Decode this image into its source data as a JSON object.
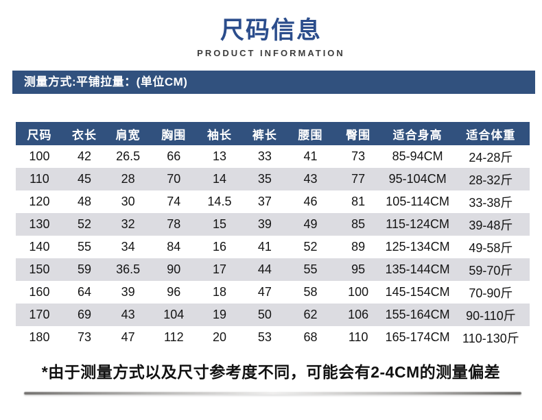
{
  "header": {
    "title": "尺码信息",
    "subtitle": "PRODUCT INFORMATION",
    "measure_note": "测量方式:平铺拉量：(单位CM)"
  },
  "colors": {
    "navy_bar": "#31517e",
    "title_blue": "#2b4d8c",
    "row_alt_gray": "#dcdce1",
    "text_black": "#141414"
  },
  "table": {
    "columns": [
      "尺码",
      "衣长",
      "肩宽",
      "胸围",
      "袖长",
      "裤长",
      "腰围",
      "臀围",
      "适合身高",
      "适合体重"
    ],
    "rows": [
      [
        "100",
        "42",
        "26.5",
        "66",
        "13",
        "33",
        "41",
        "73",
        "85-94CM",
        "24-28斤"
      ],
      [
        "110",
        "45",
        "28",
        "70",
        "14",
        "35",
        "43",
        "77",
        "95-104CM",
        "28-32斤"
      ],
      [
        "120",
        "48",
        "30",
        "74",
        "14.5",
        "37",
        "46",
        "81",
        "105-114CM",
        "33-38斤"
      ],
      [
        "130",
        "52",
        "32",
        "78",
        "15",
        "39",
        "49",
        "85",
        "115-124CM",
        "39-48斤"
      ],
      [
        "140",
        "55",
        "34",
        "84",
        "16",
        "41",
        "52",
        "89",
        "125-134CM",
        "49-58斤"
      ],
      [
        "150",
        "59",
        "36.5",
        "90",
        "17",
        "44",
        "55",
        "95",
        "135-144CM",
        "59-70斤"
      ],
      [
        "160",
        "64",
        "39",
        "96",
        "18",
        "47",
        "58",
        "100",
        "145-154CM",
        "70-90斤"
      ],
      [
        "170",
        "69",
        "43",
        "104",
        "19",
        "50",
        "62",
        "106",
        "155-164CM",
        "90-110斤"
      ],
      [
        "180",
        "73",
        "47",
        "112",
        "20",
        "53",
        "68",
        "110",
        "165-174CM",
        "110-130斤"
      ]
    ]
  },
  "footer": {
    "note": "*由于测量方式以及尺寸参考度不同，可能会有2-4CM的测量偏差"
  }
}
